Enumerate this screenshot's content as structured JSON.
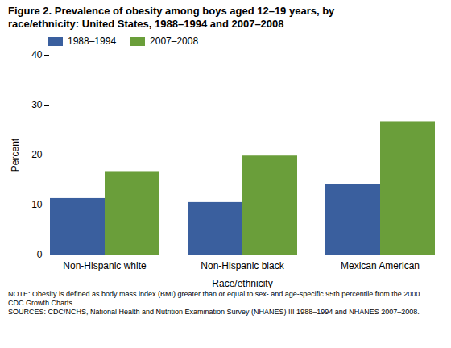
{
  "chart_data": {
    "type": "bar",
    "title": "Figure 2. Prevalence of obesity among boys aged 12–19 years, by",
    "subtitle": "race/ethnicity: United States, 1988–1994 and 2007–2008",
    "categories": [
      "Non-Hispanic white",
      "Non-Hispanic black",
      "Mexican American"
    ],
    "series": [
      {
        "name": "1988–1994",
        "color": "#3a5f9e",
        "values": [
          11.3,
          10.5,
          14.1
        ]
      },
      {
        "name": "2007–2008",
        "color": "#6a9e3a",
        "values": [
          16.7,
          19.8,
          26.7
        ]
      }
    ],
    "xlabel": "Race/ethnicity",
    "ylabel": "Percent",
    "ylim": [
      0,
      40
    ],
    "yticks": [
      0,
      10,
      20,
      30,
      40
    ],
    "grid": false,
    "legend": "upper left",
    "annotations": [
      "NOTE: Obesity is defined as body mass index (BMI) greater than or equal to sex- and age-specific 95th percentile from the 2000",
      "CDC Growth Charts.",
      "SOURCES: CDC/NCHS, National Health and Nutrition Examination Survey (NHANES) III 1988–1994 and NHANES 2007–2008."
    ]
  }
}
